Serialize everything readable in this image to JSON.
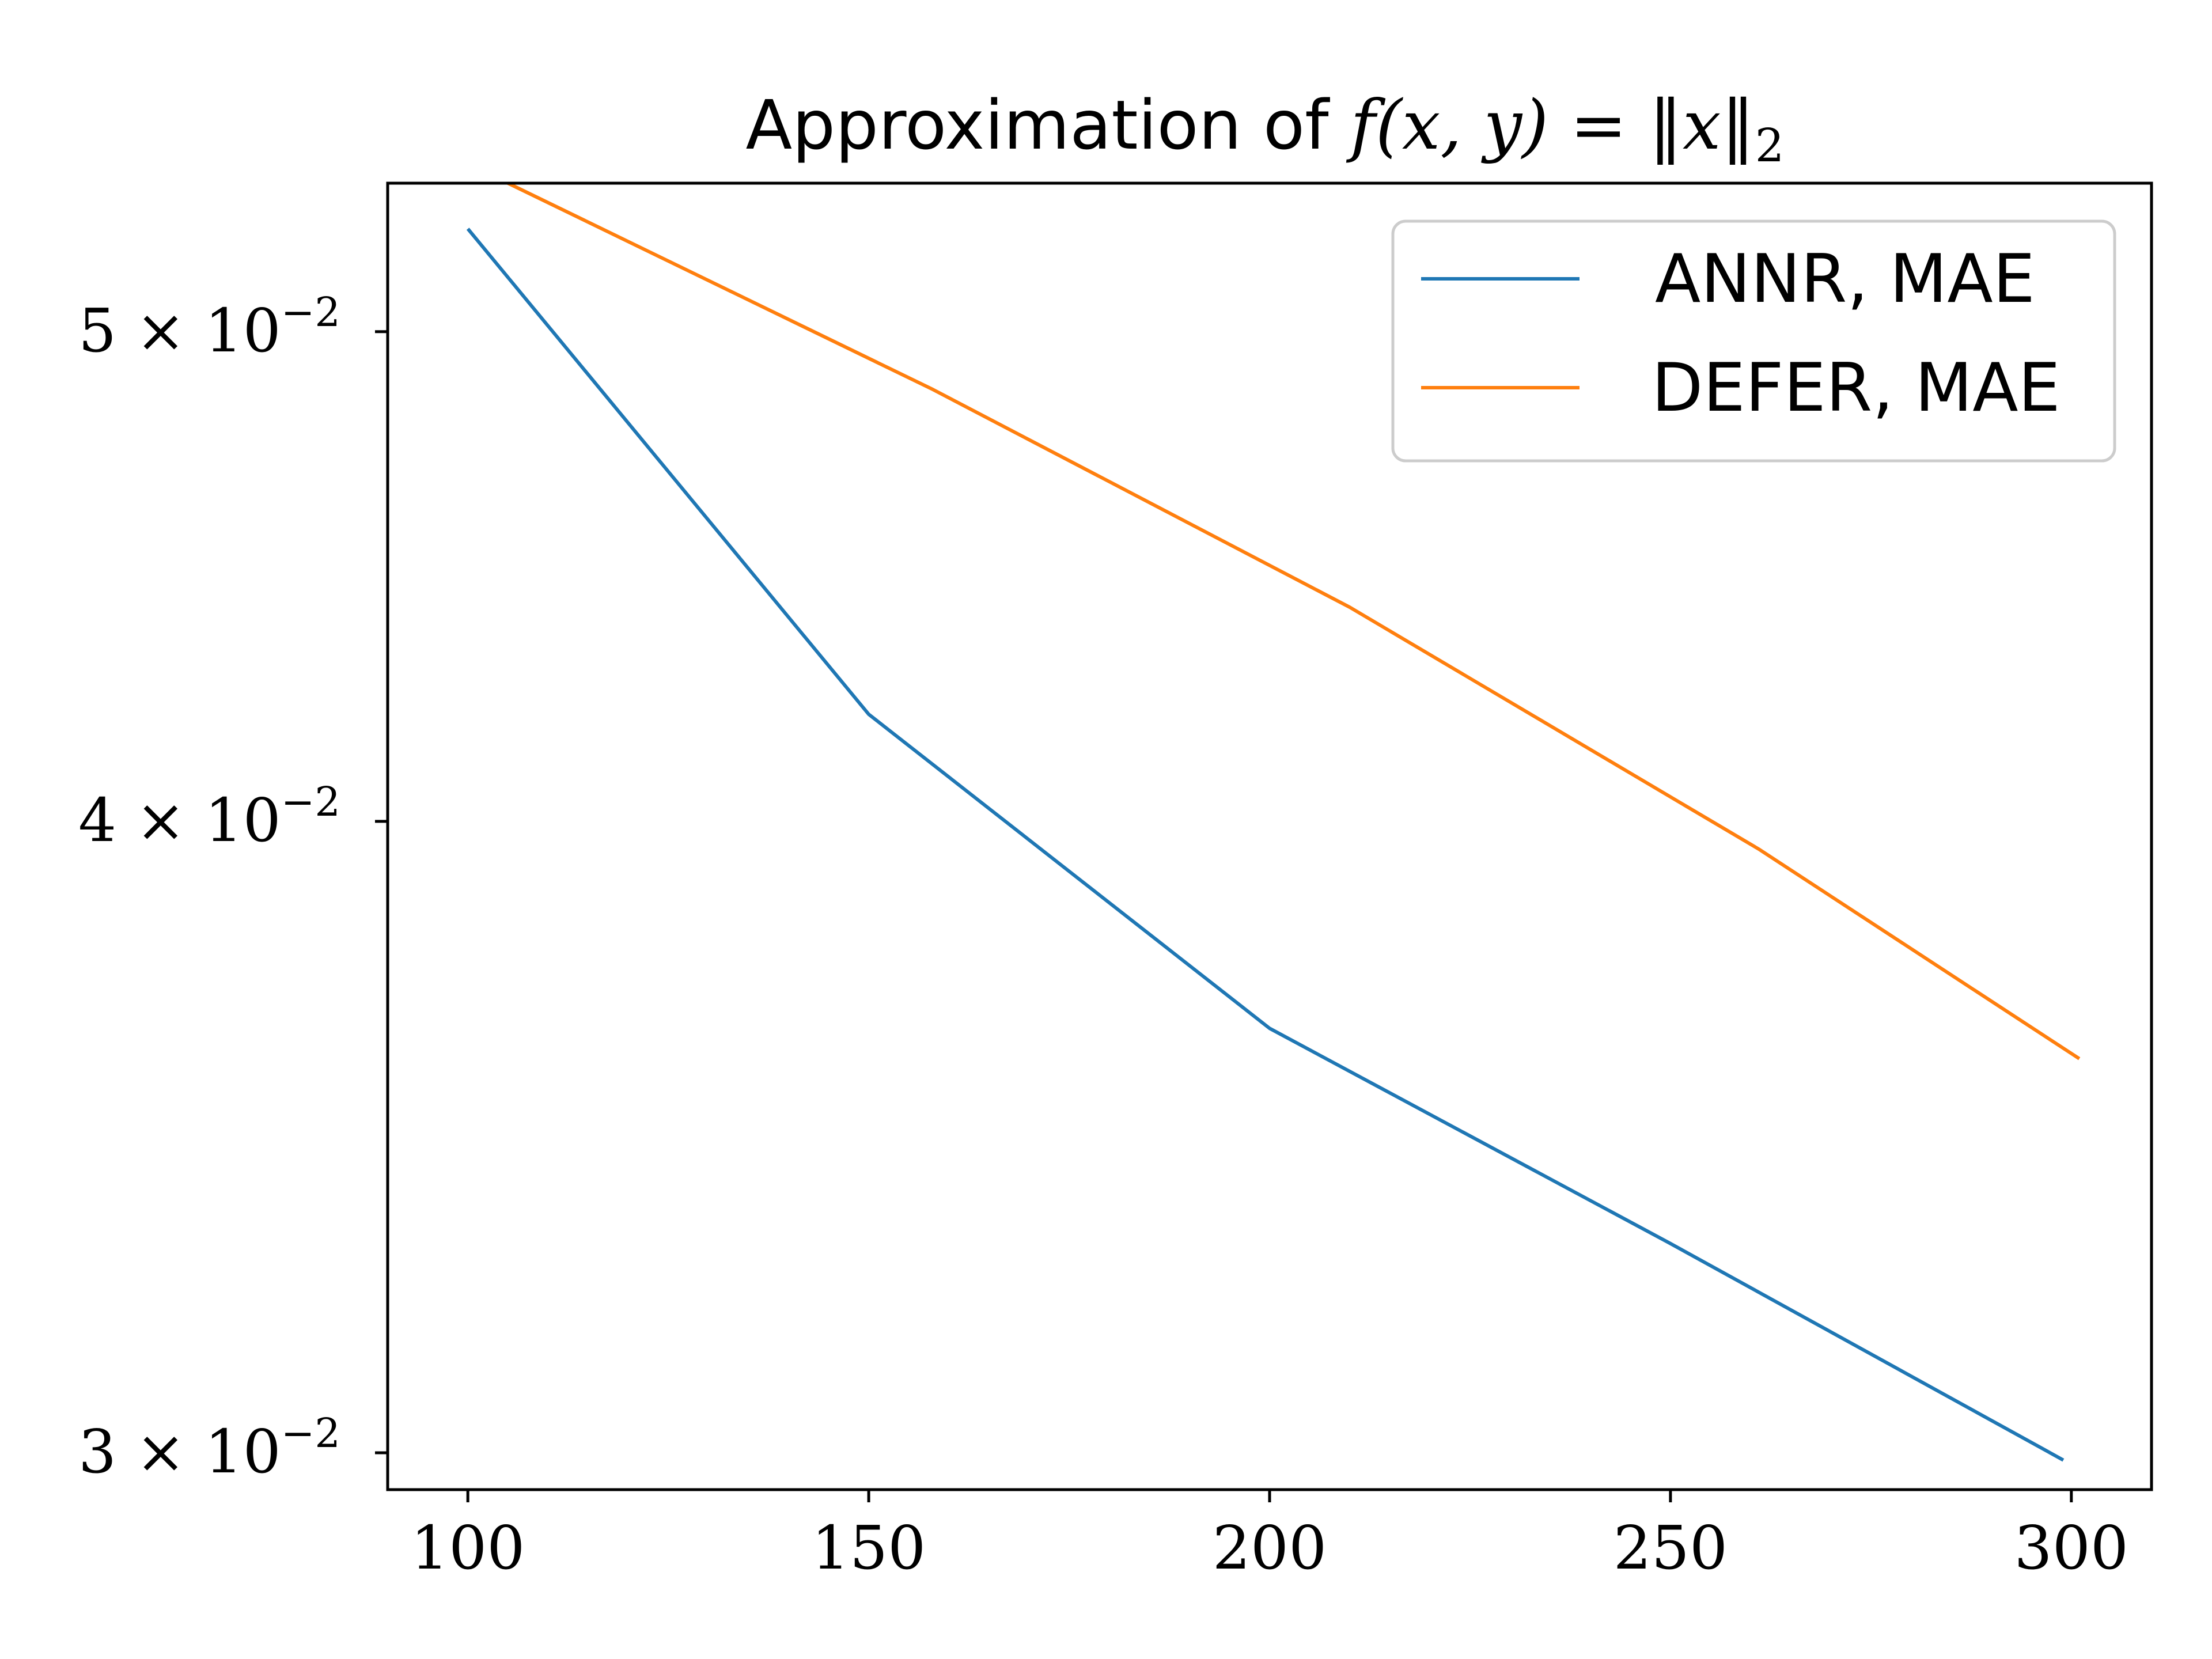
{
  "chart_data": {
    "type": "line",
    "title_prefix": "Approximation of ",
    "title_math": "f(x, y) = ‖x‖",
    "title_math_sub": "2",
    "xlabel": "",
    "ylabel": "",
    "xlim": [
      90,
      310
    ],
    "ylim": [
      0.0295,
      0.0535
    ],
    "yscale": "log",
    "x_ticks": [
      {
        "value": 100,
        "label": "100"
      },
      {
        "value": 150,
        "label": "150"
      },
      {
        "value": 200,
        "label": "200"
      },
      {
        "value": 250,
        "label": "250"
      },
      {
        "value": 300,
        "label": "300"
      }
    ],
    "y_ticks": [
      {
        "value": 0.05,
        "base": "5 × 10",
        "exp": "−2"
      },
      {
        "value": 0.04,
        "base": "4 × 10",
        "exp": "−2"
      },
      {
        "value": 0.03,
        "base": "3 × 10",
        "exp": "−2"
      }
    ],
    "grid": false,
    "legend_position": "top-right",
    "series": [
      {
        "name": "ANNR, MAE",
        "color": "#1f77b4",
        "points": [
          [
            100,
            0.0524
          ],
          [
            150,
            0.042
          ],
          [
            200,
            0.0364
          ],
          [
            250,
            0.033
          ],
          [
            299,
            0.0299
          ]
        ]
      },
      {
        "name": "DEFER, MAE",
        "color": "#ff7f0e",
        "points": [
          [
            105,
            0.0535
          ],
          [
            158,
            0.0487
          ],
          [
            210,
            0.0441
          ],
          [
            261,
            0.0395
          ],
          [
            301,
            0.0359
          ]
        ]
      }
    ]
  }
}
